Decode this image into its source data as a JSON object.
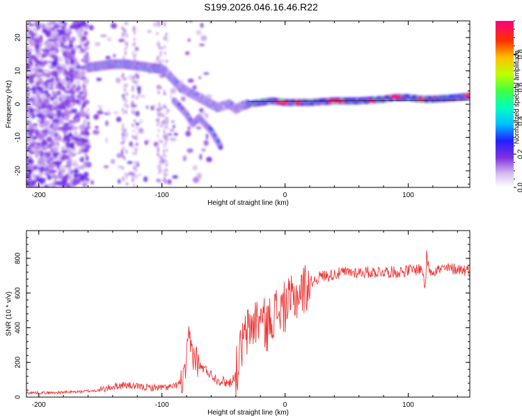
{
  "page_title": "S199.2026.046.16.46.R22",
  "colors": {
    "snr_line": "#ee3333",
    "axis": "#000000"
  },
  "chart_data": [
    {
      "type": "heatmap",
      "xlabel": "Height of straight line (km)",
      "ylabel": "Frequency (Hz)",
      "xlim": [
        -210,
        150
      ],
      "ylim": [
        -25,
        25
      ],
      "xticks": [
        -200,
        -100,
        0,
        100
      ],
      "yticks": [
        -20,
        -10,
        0,
        10,
        20
      ],
      "colorbar": {
        "label": "Normalized spectral amplitude",
        "range": [
          0,
          1
        ],
        "ticks": [
          "0.0",
          "0.2",
          "0.4",
          "0.6",
          "0.8"
        ],
        "tick_values": [
          0.0,
          0.2,
          0.4,
          0.6,
          0.8
        ],
        "colormap": "rainbow"
      },
      "ridge": {
        "x": [
          -160,
          -150,
          -140,
          -130,
          -120,
          -110,
          -100,
          -95,
          -90,
          -85,
          -80,
          -75,
          -70,
          -65,
          -60,
          -55,
          -50,
          -45,
          -40,
          -35,
          -30,
          -20,
          -10,
          0,
          10,
          20,
          40,
          60,
          80,
          90,
          100,
          110,
          120,
          140,
          150
        ],
        "y": [
          11,
          11.5,
          12,
          12,
          11.5,
          11,
          10.5,
          9,
          7,
          5,
          4,
          3,
          2,
          1,
          0,
          -1,
          -0.5,
          0,
          -1.5,
          -0.5,
          0,
          0.5,
          1,
          0.5,
          0.5,
          0.5,
          1,
          1,
          1.5,
          2,
          2,
          1.5,
          1.5,
          2,
          2.5
        ]
      },
      "branch": {
        "x": [
          -90,
          -85,
          -80,
          -75,
          -70,
          -65,
          -60,
          -55,
          -52
        ],
        "y": [
          1,
          -1,
          -3,
          -6,
          -4,
          -6,
          -8,
          -11,
          -13
        ]
      }
    },
    {
      "type": "line",
      "xlabel": "Height of straight line (km)",
      "ylabel": "SNR (10 * v/v)",
      "xlim": [
        -210,
        150
      ],
      "ylim": [
        0,
        960
      ],
      "xticks": [
        -200,
        -100,
        0,
        100
      ],
      "yticks": [
        0,
        200,
        400,
        600,
        800
      ],
      "series": [
        {
          "name": "SNR",
          "x": [
            -210,
            -190,
            -170,
            -150,
            -140,
            -130,
            -120,
            -110,
            -100,
            -90,
            -82,
            -78,
            -75,
            -72,
            -70,
            -65,
            -60,
            -55,
            -50,
            -45,
            -40,
            -35,
            -30,
            -25,
            -20,
            -15,
            -10,
            -5,
            0,
            5,
            10,
            15,
            20,
            25,
            30,
            35,
            40,
            50,
            60,
            70,
            80,
            90,
            100,
            110,
            112,
            114,
            115,
            116,
            118,
            120,
            125,
            130,
            140,
            150
          ],
          "y": [
            25,
            25,
            30,
            40,
            60,
            70,
            60,
            55,
            55,
            60,
            100,
            330,
            250,
            220,
            180,
            160,
            130,
            100,
            90,
            80,
            130,
            300,
            380,
            430,
            460,
            400,
            480,
            500,
            520,
            550,
            590,
            620,
            660,
            680,
            700,
            700,
            710,
            720,
            720,
            720,
            725,
            720,
            730,
            740,
            720,
            620,
            850,
            760,
            730,
            730,
            735,
            740,
            740,
            730
          ]
        }
      ]
    }
  ]
}
